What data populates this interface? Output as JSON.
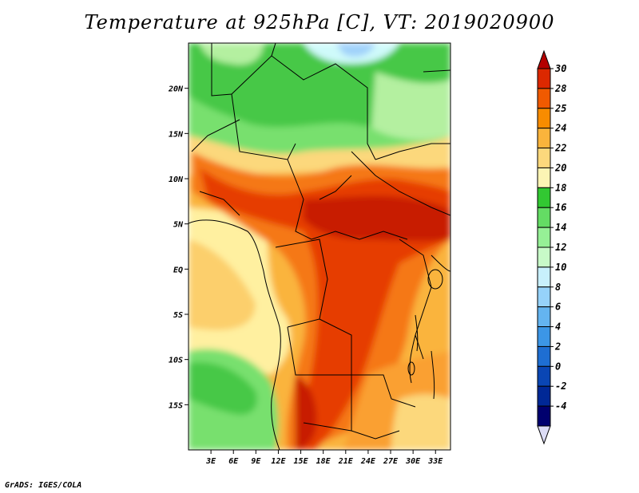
{
  "title": "Temperature at 925hPa [C], VT: 2019020900",
  "footer": "GrADS: IGES/COLA",
  "map": {
    "lat_labels": [
      "20N",
      "15N",
      "10N",
      "5N",
      "EQ",
      "5S",
      "10S",
      "15S"
    ],
    "lon_labels": [
      "3E",
      "6E",
      "9E",
      "12E",
      "15E",
      "18E",
      "21E",
      "24E",
      "27E",
      "30E",
      "33E"
    ],
    "extent": {
      "lon_min": 0,
      "lon_max": 35,
      "lat_min": -20,
      "lat_max": 25
    }
  },
  "colorbar": {
    "labels": [
      "30",
      "28",
      "25",
      "24",
      "22",
      "20",
      "18",
      "16",
      "14",
      "12",
      "10",
      "8",
      "6",
      "4",
      "2",
      "0",
      "-2",
      "-4"
    ],
    "colors": [
      "#b40000",
      "#dc2800",
      "#f05a00",
      "#f88c00",
      "#fab43c",
      "#fcd87c",
      "#fcf4b4",
      "#32c832",
      "#64dc64",
      "#96f096",
      "#c8fac8",
      "#c8f0fc",
      "#96d2fa",
      "#64b4f0",
      "#3c96e6",
      "#1e6ed2",
      "#0a46b4",
      "#002896",
      "#00006e",
      "#dcdcf5"
    ]
  },
  "colors": {
    "red_dark": "#c81e00",
    "red": "#e63c00",
    "orange": "#f57814",
    "orange_light": "#faa032",
    "yellow": "#fccf6c",
    "cream": "#fff0a0",
    "green_dark": "#46c846",
    "green": "#78e06e",
    "green_light": "#b4f0a0",
    "cyan": "#cffafa",
    "blue_light": "#a0d2fa"
  }
}
